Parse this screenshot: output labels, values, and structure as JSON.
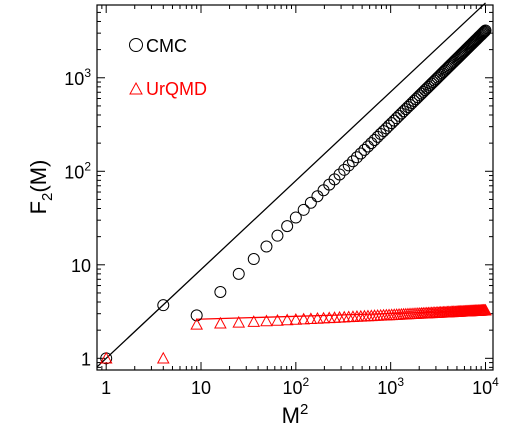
{
  "chart_data": {
    "type": "scatter",
    "title": "",
    "xlabel": {
      "base": "M",
      "sup": "2"
    },
    "ylabel": {
      "base": "F",
      "sub": "2",
      "rest": "(M)"
    },
    "x_scale": "log",
    "y_scale": "log",
    "xlim": [
      0.8,
      12000
    ],
    "ylim": [
      0.75,
      6000
    ],
    "grid": false,
    "legend": "top-left",
    "x_ticks": [
      {
        "value": 1,
        "base": "1",
        "sup": ""
      },
      {
        "value": 10,
        "base": "10",
        "sup": ""
      },
      {
        "value": 100,
        "base": "10",
        "sup": "2"
      },
      {
        "value": 1000,
        "base": "10",
        "sup": "3"
      },
      {
        "value": 10000,
        "base": "10",
        "sup": "4"
      }
    ],
    "y_ticks": [
      {
        "value": 1,
        "base": "1",
        "sup": ""
      },
      {
        "value": 10,
        "base": "10",
        "sup": ""
      },
      {
        "value": 100,
        "base": "10",
        "sup": "2"
      },
      {
        "value": 1000,
        "base": "10",
        "sup": "3"
      }
    ],
    "series": [
      {
        "name": "CMC",
        "marker": "circle",
        "color": "#000000",
        "m_values": [
          1,
          2,
          3,
          4,
          5,
          6,
          7,
          8,
          9,
          10,
          11,
          12,
          13,
          14,
          15,
          16,
          17,
          18,
          19,
          20,
          21,
          22,
          23,
          24,
          25,
          26,
          27,
          28,
          29,
          30,
          31,
          32,
          33,
          34,
          35,
          36,
          37,
          38,
          39,
          40,
          41,
          42,
          43,
          44,
          45,
          46,
          47,
          48,
          49,
          50,
          51,
          52,
          53,
          54,
          55,
          56,
          57,
          58,
          59,
          60,
          61,
          62,
          63,
          64,
          65,
          66,
          67,
          68,
          69,
          70,
          71,
          72,
          73,
          74,
          75,
          76,
          77,
          78,
          79,
          80,
          81,
          82,
          83,
          84,
          85,
          86,
          87,
          88,
          89,
          90,
          91,
          92,
          93,
          94,
          95,
          96,
          97,
          98,
          99,
          100
        ],
        "y_rule": "power",
        "y_coef": 0.32,
        "y_exp": 1.0,
        "y_override": {
          "1": 1.0,
          "2": 3.7
        },
        "fit": {
          "x": [
            0.8,
            10000
          ],
          "coef": 1.0,
          "exp": 0.95
        }
      },
      {
        "name": "UrQMD",
        "marker": "triangle",
        "color": "#ff0000",
        "m_values": [
          1,
          2,
          3,
          4,
          5,
          6,
          7,
          8,
          9,
          10,
          11,
          12,
          13,
          14,
          15,
          16,
          17,
          18,
          19,
          20,
          21,
          22,
          23,
          24,
          25,
          26,
          27,
          28,
          29,
          30,
          31,
          32,
          33,
          34,
          35,
          36,
          37,
          38,
          39,
          40,
          41,
          42,
          43,
          44,
          45,
          46,
          47,
          48,
          49,
          50,
          51,
          52,
          53,
          54,
          55,
          56,
          57,
          58,
          59,
          60,
          61,
          62,
          63,
          64,
          65,
          66,
          67,
          68,
          69,
          70,
          71,
          72,
          73,
          74,
          75,
          76,
          77,
          78,
          79,
          80,
          81,
          82,
          83,
          84,
          85,
          86,
          87,
          88,
          89,
          90,
          91,
          92,
          93,
          94,
          95,
          96,
          97,
          98,
          99,
          100
        ],
        "y_rule": "power",
        "y_coef": 2.06,
        "y_exp": 0.05,
        "y_override": {
          "1": 1.0,
          "2": 1.0
        },
        "fit": {
          "x": [
            9,
            10000
          ],
          "coef": 2.45,
          "exp": 0.03
        }
      }
    ]
  }
}
